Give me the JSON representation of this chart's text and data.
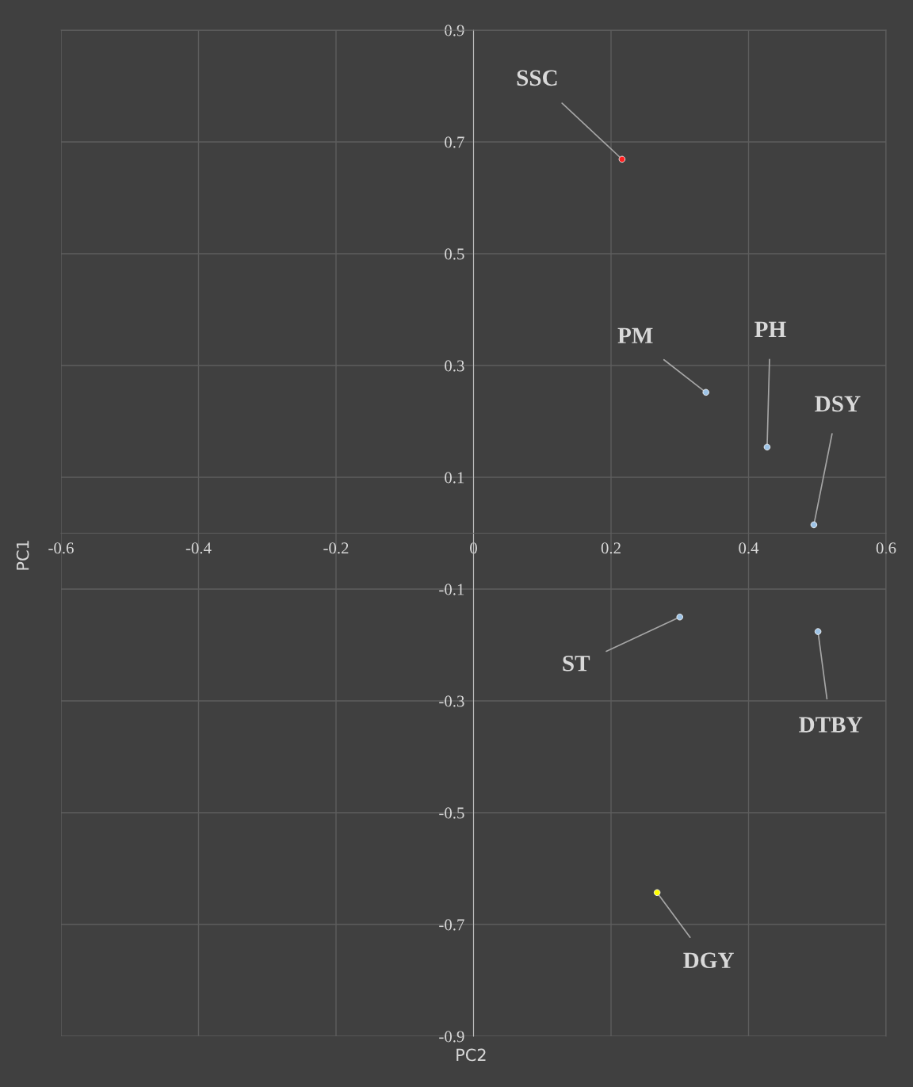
{
  "chart_data": {
    "type": "scatter",
    "xlabel": "PC2",
    "ylabel": "PC1",
    "x": [
      0.216,
      0.338,
      0.427,
      0.495,
      0.3,
      0.501,
      0.267
    ],
    "values": [
      0.669,
      0.252,
      0.154,
      0.015,
      -0.15,
      -0.176,
      -0.643
    ],
    "colors": [
      "#ff2020",
      "#9dc3e6",
      "#9dc3e6",
      "#9dc3e6",
      "#9dc3e6",
      "#9dc3e6",
      "#ffff00"
    ],
    "annotations": [
      {
        "text": "SSC",
        "x": 0.216,
        "y": 0.669
      },
      {
        "text": "PM",
        "x": 0.338,
        "y": 0.252
      },
      {
        "text": "PH",
        "x": 0.427,
        "y": 0.154
      },
      {
        "text": "DSY",
        "x": 0.495,
        "y": 0.015
      },
      {
        "text": "ST",
        "x": 0.3,
        "y": -0.15
      },
      {
        "text": "DTBY",
        "x": 0.501,
        "y": -0.176
      },
      {
        "text": "DGY",
        "x": 0.267,
        "y": -0.643
      }
    ],
    "xlim": [
      -0.6,
      0.6
    ],
    "xticks": [
      -0.6,
      -0.4,
      -0.2,
      0,
      0.2,
      0.4,
      0.6
    ],
    "ylim": [
      -0.9,
      0.9
    ],
    "yticks": [
      -0.9,
      -0.7,
      -0.5,
      -0.3,
      -0.1,
      0.1,
      0.3,
      0.5,
      0.7,
      0.9
    ],
    "grid": true,
    "marker": "circle"
  }
}
